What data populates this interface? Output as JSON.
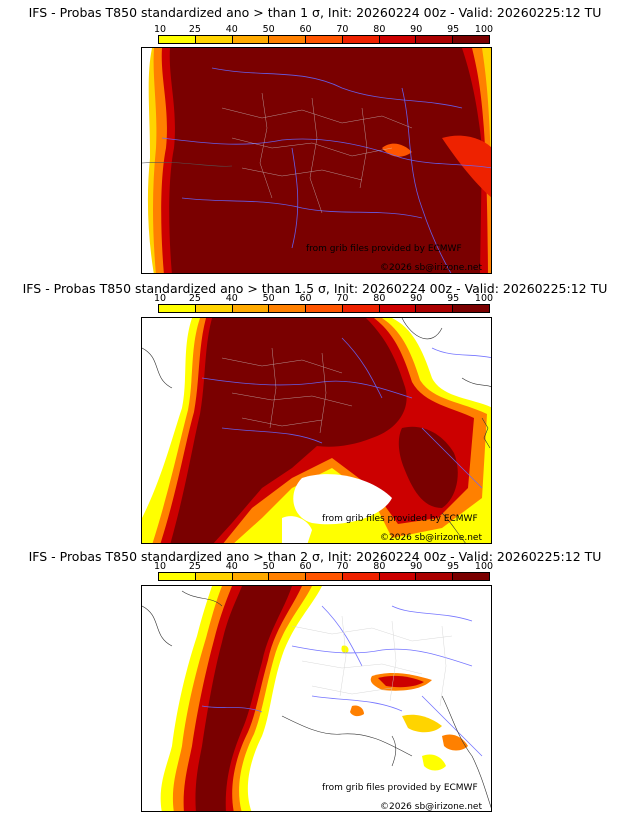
{
  "legend": {
    "ticks": [
      "10",
      "25",
      "40",
      "50",
      "60",
      "70",
      "80",
      "90",
      "95",
      "100"
    ],
    "colors": [
      "#ffff00",
      "#ffd400",
      "#ffaa00",
      "#ff8000",
      "#ff5500",
      "#ee2200",
      "#cc0000",
      "#aa0000",
      "#7a0000"
    ]
  },
  "panels": [
    {
      "title": "IFS - Probas T850  standardized ano > than 1 σ, Init: 20260224 00z - Valid: 20260225:12 TU"
    },
    {
      "title": "IFS - Probas T850  standardized ano > than 1.5 σ, Init: 20260224 00z - Valid: 20260225:12 TU"
    },
    {
      "title": "IFS - Probas T850  standardized ano > than 2 σ, Init: 20260224 00z - Valid: 20260225:12 TU"
    }
  ],
  "credit": {
    "source": "from grib files provided by ECMWF",
    "copyright": "©2026 sb@irizone.net"
  }
}
